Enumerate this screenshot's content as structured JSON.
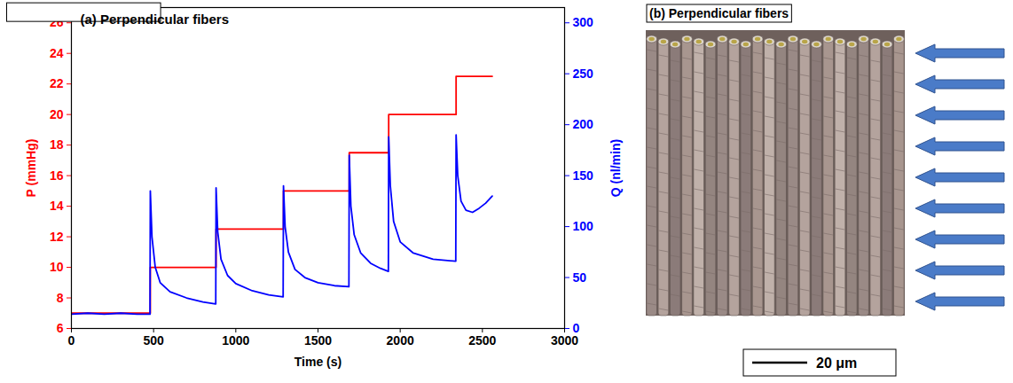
{
  "chart_data": {
    "type": "line",
    "title": "(a) Perpendicular fibers",
    "x_label": "Time (s)",
    "y_label": "P (mmHg)",
    "y2_label": "Q (nl/min)",
    "xlim": [
      0,
      3000
    ],
    "xticks": [
      0,
      500,
      1000,
      1500,
      2000,
      2500,
      3000
    ],
    "ylim": [
      6,
      27
    ],
    "yticks": [
      6,
      8,
      10,
      12,
      14,
      16,
      18,
      20,
      22,
      24,
      26
    ],
    "y2lim": [
      0,
      315
    ],
    "y2ticks": [
      0,
      50,
      100,
      150,
      200,
      250,
      300
    ],
    "series": [
      {
        "name": "P",
        "color": "#ff0000",
        "line_style": "step",
        "x": [
          0,
          480,
          880,
          1290,
          1690,
          1930,
          2340,
          2560
        ],
        "values": [
          7,
          10,
          12.5,
          15,
          17.5,
          20,
          22.5,
          22.5
        ]
      },
      {
        "name": "Q",
        "color": "#0000ff",
        "axis": "y2",
        "x": [
          0,
          100,
          200,
          300,
          400,
          478,
          480,
          490,
          510,
          540,
          600,
          700,
          800,
          878,
          880,
          890,
          910,
          950,
          1000,
          1100,
          1200,
          1288,
          1290,
          1300,
          1320,
          1360,
          1420,
          1500,
          1600,
          1688,
          1690,
          1700,
          1720,
          1760,
          1820,
          1880,
          1928,
          1930,
          1940,
          1960,
          2000,
          2080,
          2200,
          2338,
          2340,
          2350,
          2370,
          2400,
          2440,
          2480,
          2520,
          2560
        ],
        "values": [
          14,
          15,
          14,
          15,
          14,
          14,
          135,
          90,
          60,
          45,
          36,
          30,
          26,
          24,
          138,
          95,
          68,
          52,
          44,
          37,
          33,
          31,
          140,
          100,
          75,
          58,
          50,
          45,
          42,
          41,
          170,
          120,
          92,
          74,
          64,
          59,
          56,
          188,
          140,
          105,
          85,
          74,
          68,
          66,
          190,
          150,
          125,
          116,
          114,
          118,
          123,
          130
        ]
      }
    ]
  },
  "image_panel": {
    "title": "(b) Perpendicular fibers",
    "scale_bar": "20 μm"
  }
}
